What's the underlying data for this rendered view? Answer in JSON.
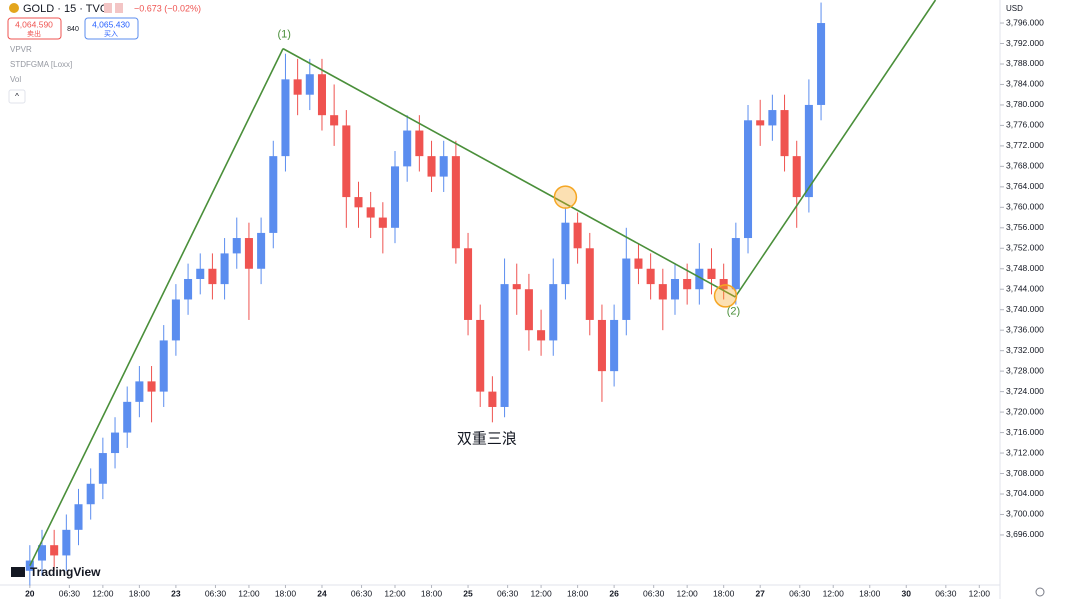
{
  "header": {
    "symbol": "GOLD · 15 · TVC",
    "change": "−0.673 (−0.02%)",
    "sell_price": "4,064.590",
    "sell_label": "卖出",
    "spread": "840",
    "buy_price": "4,065.430",
    "buy_label": "买入",
    "indicators": [
      "VPVR",
      "STDFGMA [Loxx]",
      "Vol"
    ],
    "logo": "TradingView",
    "currency": "USD"
  },
  "chart_data": {
    "type": "candlestick",
    "up_color": "#5b8def",
    "down_color": "#ef5350",
    "line_color": "#4a8f3a",
    "circle_color": "#f5a623",
    "x": [
      0,
      2,
      4,
      6,
      8,
      10,
      12,
      14,
      16,
      18,
      20,
      22,
      24,
      26,
      28,
      30,
      32,
      34,
      36,
      38,
      40,
      42,
      44,
      46,
      48,
      50,
      52,
      54,
      56,
      58,
      60,
      62,
      64,
      66,
      68,
      70,
      72,
      74,
      76,
      78,
      80,
      82,
      84,
      86,
      88,
      90,
      92,
      94,
      96,
      98,
      100,
      102,
      104,
      106,
      108,
      110,
      112,
      114,
      116,
      118,
      120,
      122,
      124,
      126,
      128,
      130
    ],
    "open": [
      3689,
      3691,
      3694,
      3692,
      3697,
      3702,
      3706,
      3712,
      3716,
      3722,
      3726,
      3724,
      3734,
      3742,
      3746,
      3748,
      3745,
      3751,
      3754,
      3748,
      3755,
      3770,
      3785,
      3782,
      3786,
      3778,
      3776,
      3762,
      3760,
      3758,
      3756,
      3768,
      3775,
      3770,
      3766,
      3770,
      3752,
      3738,
      3724,
      3721,
      3745,
      3744,
      3736,
      3734,
      3745,
      3757,
      3752,
      3738,
      3728,
      3738,
      3750,
      3748,
      3745,
      3742,
      3746,
      3744,
      3748,
      3746,
      3744,
      3754,
      3777,
      3776,
      3779,
      3770,
      3762,
      3780
    ],
    "high": [
      3694,
      3697,
      3697,
      3700,
      3705,
      3709,
      3715,
      3719,
      3725,
      3729,
      3729,
      3737,
      3745,
      3749,
      3751,
      3751,
      3754,
      3758,
      3757,
      3758,
      3773,
      3790,
      3789,
      3789,
      3789,
      3784,
      3779,
      3765,
      3763,
      3761,
      3771,
      3778,
      3778,
      3773,
      3773,
      3773,
      3755,
      3741,
      3727,
      3750,
      3749,
      3747,
      3740,
      3750,
      3760,
      3759,
      3755,
      3741,
      3741,
      3756,
      3753,
      3751,
      3748,
      3749,
      3749,
      3753,
      3752,
      3749,
      3757,
      3780,
      3781,
      3782,
      3782,
      3773,
      3785,
      3800
    ],
    "low": [
      3686,
      3688,
      3689,
      3689,
      3694,
      3699,
      3703,
      3709,
      3713,
      3719,
      3718,
      3721,
      3731,
      3739,
      3743,
      3742,
      3742,
      3748,
      3738,
      3745,
      3752,
      3767,
      3778,
      3779,
      3775,
      3772,
      3756,
      3756,
      3754,
      3751,
      3753,
      3765,
      3767,
      3763,
      3763,
      3749,
      3735,
      3721,
      3718,
      3719,
      3739,
      3732,
      3731,
      3731,
      3742,
      3749,
      3735,
      3722,
      3725,
      3735,
      3745,
      3742,
      3736,
      3739,
      3741,
      3741,
      3743,
      3742,
      3741,
      3751,
      3772,
      3773,
      3767,
      3756,
      3759,
      3777
    ],
    "close": [
      3691,
      3694,
      3692,
      3697,
      3702,
      3706,
      3712,
      3716,
      3722,
      3726,
      3724,
      3734,
      3742,
      3746,
      3748,
      3745,
      3751,
      3754,
      3748,
      3755,
      3770,
      3785,
      3782,
      3786,
      3778,
      3776,
      3762,
      3760,
      3758,
      3756,
      3768,
      3775,
      3770,
      3766,
      3770,
      3752,
      3738,
      3724,
      3721,
      3745,
      3744,
      3736,
      3734,
      3745,
      3757,
      3752,
      3738,
      3728,
      3738,
      3750,
      3748,
      3745,
      3742,
      3746,
      3744,
      3748,
      3746,
      3744,
      3754,
      3777,
      3776,
      3779,
      3770,
      3762,
      3780,
      3796
    ],
    "xlim": [
      -4.9,
      159.4
    ],
    "ylim": [
      3687.2,
      3800.5
    ],
    "yticks": [
      {
        "value": 3696,
        "label": "3,696.000"
      },
      {
        "value": 3700,
        "label": "3,700.000"
      },
      {
        "value": 3704,
        "label": "3,704.000"
      },
      {
        "value": 3708,
        "label": "3,708.000"
      },
      {
        "value": 3712,
        "label": "3,712.000"
      },
      {
        "value": 3716,
        "label": "3,716.000"
      },
      {
        "value": 3720,
        "label": "3,720.000"
      },
      {
        "value": 3724,
        "label": "3,724.000"
      },
      {
        "value": 3728,
        "label": "3,728.000"
      },
      {
        "value": 3732,
        "label": "3,732.000"
      },
      {
        "value": 3736,
        "label": "3,736.000"
      },
      {
        "value": 3740,
        "label": "3,740.000"
      },
      {
        "value": 3744,
        "label": "3,744.000"
      },
      {
        "value": 3748,
        "label": "3,748.000"
      },
      {
        "value": 3752,
        "label": "3,752.000"
      },
      {
        "value": 3756,
        "label": "3,756.000"
      },
      {
        "value": 3760,
        "label": "3,760.000"
      },
      {
        "value": 3764,
        "label": "3,764.000"
      },
      {
        "value": 3768,
        "label": "3,768.000"
      },
      {
        "value": 3772,
        "label": "3,772.000"
      },
      {
        "value": 3776,
        "label": "3,776.000"
      },
      {
        "value": 3780,
        "label": "3,780.000"
      },
      {
        "value": 3784,
        "label": "3,784.000"
      },
      {
        "value": 3788,
        "label": "3,788.000"
      },
      {
        "value": 3792,
        "label": "3,792.000"
      },
      {
        "value": 3796,
        "label": "3,796.000"
      }
    ],
    "xticks": [
      {
        "value": 0,
        "label": "20"
      },
      {
        "value": 6.5,
        "label": "06:30"
      },
      {
        "value": 12,
        "label": "12:00"
      },
      {
        "value": 18,
        "label": "18:00"
      },
      {
        "value": 24,
        "label": "23"
      },
      {
        "value": 30.5,
        "label": "06:30"
      },
      {
        "value": 36,
        "label": "12:00"
      },
      {
        "value": 42,
        "label": "18:00"
      },
      {
        "value": 48,
        "label": "24"
      },
      {
        "value": 54.5,
        "label": "06:30"
      },
      {
        "value": 60,
        "label": "12:00"
      },
      {
        "value": 66,
        "label": "18:00"
      },
      {
        "value": 72,
        "label": "25"
      },
      {
        "value": 78.5,
        "label": "06:30"
      },
      {
        "value": 84,
        "label": "12:00"
      },
      {
        "value": 90,
        "label": "18:00"
      },
      {
        "value": 96,
        "label": "26"
      },
      {
        "value": 102.5,
        "label": "06:30"
      },
      {
        "value": 108,
        "label": "12:00"
      },
      {
        "value": 114,
        "label": "18:00"
      },
      {
        "value": 120,
        "label": "27"
      },
      {
        "value": 126.5,
        "label": "06:30"
      },
      {
        "value": 132,
        "label": "12:00"
      },
      {
        "value": 138,
        "label": "18:00"
      },
      {
        "value": 144,
        "label": "30"
      },
      {
        "value": 150.5,
        "label": "06:30"
      },
      {
        "value": 156,
        "label": "12:00"
      }
    ],
    "annotations": {
      "lines": [
        [
          [
            0,
            3690
          ],
          [
            41.6,
            3791
          ]
        ],
        [
          [
            41.6,
            3791
          ],
          [
            115.9,
            3742.5
          ]
        ],
        [
          [
            115.9,
            3742.5
          ],
          [
            148.8,
            3800.5
          ]
        ]
      ],
      "circles": [
        [
          88,
          3762
        ],
        [
          114.3,
          3742.7
        ]
      ],
      "labels": [
        {
          "text": "(1)",
          "x": 41.8,
          "y": 3793.7
        },
        {
          "text": "(2)",
          "x": 115.6,
          "y": 3739.6
        },
        {
          "text": "双重三浪",
          "x": 75.1,
          "y": 3714.6
        }
      ]
    }
  }
}
